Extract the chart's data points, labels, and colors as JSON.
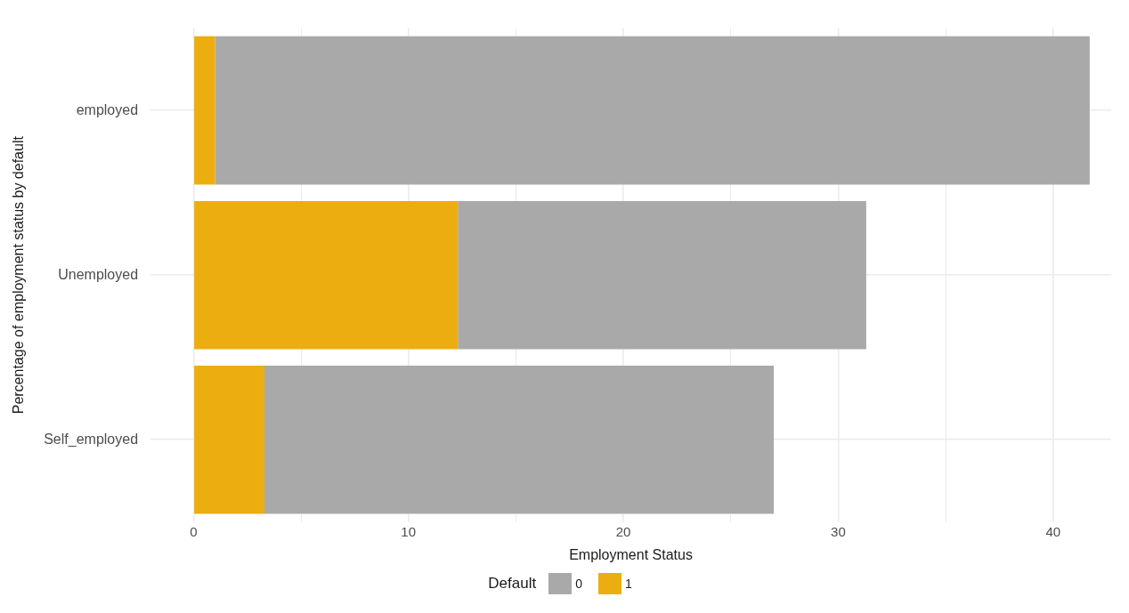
{
  "chart_data": {
    "type": "bar",
    "orientation": "horizontal",
    "stacked": true,
    "xlabel": "Employment Status",
    "ylabel": "Percentage of employment status by default",
    "legend_title": "Default",
    "categories": [
      "employed",
      "Unemployed",
      "Self_employed"
    ],
    "series": [
      {
        "name": "1",
        "color": "#ecad10",
        "values": [
          1.0,
          12.3,
          3.3
        ]
      },
      {
        "name": "0",
        "color": "#a9a9a9",
        "values": [
          40.7,
          19.0,
          23.7
        ]
      }
    ],
    "xlim": [
      -2,
      42.7
    ],
    "xticks": [
      0,
      {
        "value": 5,
        "label": null
      },
      10,
      {
        "value": 15,
        "label": null
      },
      20,
      {
        "value": 25,
        "label": null
      },
      30,
      {
        "value": 35,
        "label": null
      },
      40
    ],
    "grid": true,
    "legend": "bottom"
  }
}
